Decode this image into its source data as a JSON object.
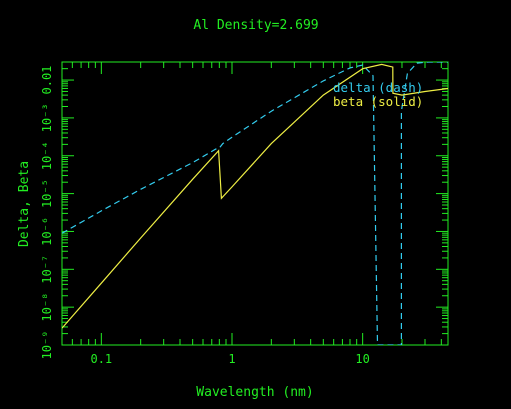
{
  "chart_data": {
    "type": "line",
    "title": "Al Density=2.699",
    "xlabel": "Wavelength (nm)",
    "ylabel": "Delta, Beta",
    "x_scale": "log",
    "y_scale": "log",
    "xlim": [
      0.05,
      45
    ],
    "ylim": [
      1e-09,
      0.03
    ],
    "grid": false,
    "legend_position": "top-right",
    "x_ticks": [
      {
        "value": 0.1,
        "label": "0.1"
      },
      {
        "value": 1,
        "label": "1"
      },
      {
        "value": 10,
        "label": "10"
      }
    ],
    "y_ticks": [
      {
        "value": 1e-09,
        "label": "10⁻⁹"
      },
      {
        "value": 1e-08,
        "label": "10⁻⁸"
      },
      {
        "value": 1e-07,
        "label": "10⁻⁷"
      },
      {
        "value": 1e-06,
        "label": "10⁻⁶"
      },
      {
        "value": 1e-05,
        "label": "10⁻⁵"
      },
      {
        "value": 0.0001,
        "label": "10⁻⁴"
      },
      {
        "value": 0.001,
        "label": "10⁻³"
      },
      {
        "value": 0.01,
        "label": "0.01"
      }
    ],
    "colors": {
      "axes": "#22ee22",
      "delta": "#33ccee",
      "beta": "#eeee44"
    },
    "series": [
      {
        "name": "delta (dash)",
        "style": "dash",
        "x": [
          0.05,
          0.1,
          0.2,
          0.5,
          0.75,
          0.8,
          0.85,
          1,
          2,
          5,
          8,
          10,
          12,
          13.0,
          13.0,
          19.8,
          19.8,
          22,
          26,
          32,
          40,
          45
        ],
        "y": [
          9e-07,
          3.5e-06,
          1.3e-05,
          6.6e-05,
          0.00015,
          0.00016,
          0.00021,
          0.00031,
          0.0015,
          0.0095,
          0.021,
          0.025,
          0.013,
          1e-09,
          1e-09,
          1e-09,
          0.0015,
          0.015,
          0.028,
          0.03,
          0.03,
          0.03
        ]
      },
      {
        "name": "beta (solid)",
        "style": "solid",
        "x": [
          0.05,
          0.1,
          0.2,
          0.5,
          0.79,
          0.83,
          1,
          2,
          5,
          10,
          14,
          17,
          17.05,
          20,
          30,
          45
        ],
        "y": [
          2.8e-09,
          4.3e-08,
          6.7e-07,
          2.4e-05,
          0.000136,
          7.5e-06,
          1.5e-05,
          0.00021,
          0.004,
          0.02,
          0.026,
          0.022,
          0.0045,
          0.004,
          0.005,
          0.006
        ]
      }
    ]
  }
}
